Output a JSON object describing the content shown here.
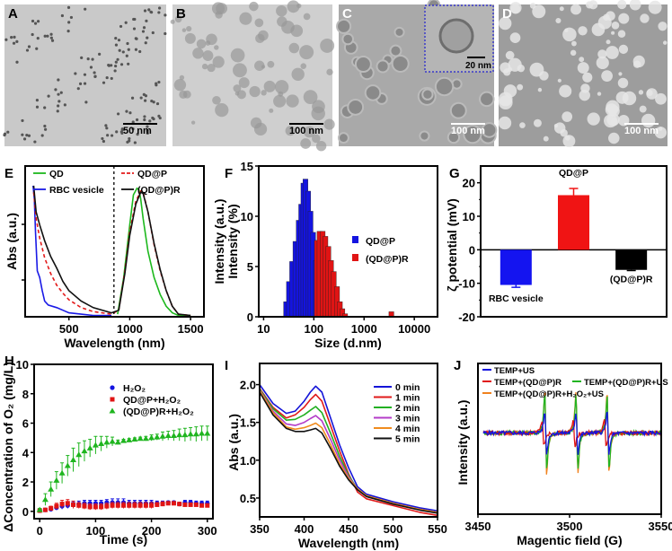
{
  "images": [
    {
      "label": "A",
      "scale_bar": "50 nm",
      "tone": "#c9c9c9"
    },
    {
      "label": "B",
      "scale_bar": "100 nm",
      "tone": "#cfcfcf"
    },
    {
      "label": "C",
      "scale_bar": "100 nm",
      "inset_scale_bar": "20 nm",
      "tone": "#a9a9a9"
    },
    {
      "label": "D",
      "scale_bar": "100 nm",
      "tone": "#9d9d9d"
    }
  ],
  "chart_data": [
    {
      "panel": "E",
      "type": "line",
      "xlabel": "Wavelength (nm)",
      "ylabel_left": "Abs (a.u.)",
      "ylabel_right": "Intensity (a.u.)",
      "xlim": [
        140,
        1610
      ],
      "xticks": [
        500,
        1000,
        1500
      ],
      "divider_x": 870,
      "grid": false,
      "legend": "top",
      "series": [
        {
          "name": "QD",
          "color": "#1db81d",
          "dash": false,
          "x": [
            900,
            950,
            1000,
            1030,
            1060,
            1075,
            1090,
            1110,
            1150,
            1200,
            1250,
            1300,
            1350,
            1400,
            1500
          ],
          "y": [
            0.02,
            0.3,
            0.7,
            0.93,
            0.98,
            0.97,
            0.9,
            0.75,
            0.5,
            0.3,
            0.17,
            0.08,
            0.03,
            0.01,
            0.01
          ]
        },
        {
          "name": "RBC vesicle",
          "color": "#1a1ae6",
          "dash": false,
          "x": [
            205,
            215,
            225,
            240,
            260,
            280,
            300,
            330,
            400,
            450,
            500,
            600,
            700,
            850
          ],
          "y": [
            1.0,
            0.9,
            0.65,
            0.35,
            0.3,
            0.2,
            0.12,
            0.09,
            0.07,
            0.05,
            0.03,
            0.02,
            0.01,
            0.01
          ]
        },
        {
          "name": "QD@P",
          "color": "#e31a1a",
          "dash": true,
          "x": [
            210,
            230,
            260,
            300,
            350,
            400,
            450,
            500,
            600,
            700,
            850,
            910,
            960,
            1000,
            1050,
            1090,
            1110,
            1150,
            1200,
            1250,
            1300,
            1350,
            1400,
            1500
          ],
          "y": [
            0.95,
            0.75,
            0.6,
            0.45,
            0.33,
            0.24,
            0.18,
            0.13,
            0.07,
            0.04,
            0.02,
            0.05,
            0.35,
            0.65,
            0.88,
            0.96,
            0.95,
            0.8,
            0.55,
            0.35,
            0.2,
            0.08,
            0.02,
            0.01
          ]
        },
        {
          "name": "(QD@P)R",
          "color": "#111111",
          "dash": false,
          "x": [
            210,
            230,
            260,
            300,
            350,
            400,
            450,
            500,
            600,
            700,
            850,
            910,
            960,
            1000,
            1050,
            1090,
            1110,
            1150,
            1200,
            1250,
            1300,
            1350,
            1400,
            1500
          ],
          "y": [
            1.0,
            0.8,
            0.7,
            0.58,
            0.46,
            0.37,
            0.27,
            0.2,
            0.12,
            0.07,
            0.03,
            0.05,
            0.33,
            0.62,
            0.86,
            0.95,
            0.94,
            0.8,
            0.56,
            0.36,
            0.2,
            0.08,
            0.02,
            0.01
          ]
        }
      ]
    },
    {
      "panel": "F",
      "type": "bar",
      "xlabel": "Size (d.nm)",
      "ylabel": "Intensity (%)",
      "xscale": "log",
      "xlim": [
        8,
        29000
      ],
      "ylim": [
        0,
        15
      ],
      "xticks": [
        10,
        100,
        1000,
        10000
      ],
      "yticks": [
        0,
        5,
        10,
        15
      ],
      "legend": "right",
      "series": [
        {
          "name": "QD@P",
          "color": "#1414e0",
          "x": [
            28,
            32,
            37,
            43,
            50,
            56,
            62,
            68,
            77,
            86,
            97,
            110,
            125,
            140
          ],
          "y": [
            1.5,
            3.5,
            5.5,
            7.5,
            9.6,
            11.2,
            13.3,
            13.7,
            12.5,
            10.5,
            8.4,
            5.6,
            3.0,
            1.2
          ]
        },
        {
          "name": "(QD@P)R",
          "color": "#e01414",
          "x": [
            115,
            130,
            150,
            170,
            195,
            220,
            250,
            290,
            330,
            370,
            420,
            3500
          ],
          "y": [
            7.6,
            8.5,
            8.5,
            8.0,
            7.0,
            5.6,
            4.5,
            3.0,
            1.5,
            0.8,
            0.3,
            0.5
          ]
        }
      ]
    },
    {
      "panel": "G",
      "type": "bar",
      "ylabel": "ζ potential (mV)",
      "ylim": [
        -20,
        25
      ],
      "yticks": [
        -20,
        -10,
        0,
        10,
        20
      ],
      "categories": [
        "RBC vesicle",
        "QD@P",
        "(QD@P)R"
      ],
      "values": [
        -10.5,
        16.3,
        -6.0
      ],
      "errors": [
        0.7,
        2.0,
        0.2
      ],
      "colors": [
        "#1414f0",
        "#f01414",
        "#000000"
      ]
    },
    {
      "panel": "H",
      "type": "scatter",
      "xlabel": "Time (s)",
      "ylabel": "ΔConcentration of O₂ (mg/L)",
      "xlim": [
        -10,
        310
      ],
      "ylim": [
        -0.5,
        10
      ],
      "xticks": [
        0,
        100,
        200,
        300
      ],
      "yticks": [
        0,
        2,
        4,
        6,
        8,
        10
      ],
      "legend": "top-right",
      "series": [
        {
          "name": "H₂O₂",
          "color": "#1414e0",
          "marker": "circle",
          "x": [
            0,
            10,
            20,
            30,
            40,
            50,
            60,
            70,
            80,
            90,
            100,
            110,
            120,
            130,
            140,
            150,
            160,
            170,
            180,
            190,
            200,
            210,
            220,
            230,
            240,
            250,
            260,
            270,
            280,
            290,
            300
          ],
          "y": [
            0.05,
            0.1,
            0.15,
            0.25,
            0.35,
            0.4,
            0.45,
            0.5,
            0.55,
            0.55,
            0.55,
            0.55,
            0.6,
            0.6,
            0.6,
            0.6,
            0.55,
            0.55,
            0.55,
            0.55,
            0.55,
            0.55,
            0.55,
            0.6,
            0.6,
            0.5,
            0.6,
            0.6,
            0.55,
            0.55,
            0.55
          ],
          "err": [
            0.1,
            0.1,
            0.1,
            0.15,
            0.2,
            0.2,
            0.2,
            0.2,
            0.2,
            0.2,
            0.2,
            0.2,
            0.2,
            0.25,
            0.25,
            0.25,
            0.2,
            0.2,
            0.2,
            0.2,
            0.2,
            0.15,
            0.15,
            0.1,
            0.1,
            0.1,
            0.15,
            0.15,
            0.15,
            0.15,
            0.15
          ]
        },
        {
          "name": "QD@P+H₂O₂",
          "color": "#e01414",
          "marker": "square",
          "x": [
            0,
            10,
            20,
            30,
            40,
            50,
            60,
            70,
            80,
            90,
            100,
            110,
            120,
            130,
            140,
            150,
            160,
            170,
            180,
            190,
            200,
            210,
            220,
            230,
            240,
            250,
            260,
            270,
            280,
            290,
            300
          ],
          "y": [
            0.05,
            0.1,
            0.2,
            0.35,
            0.5,
            0.55,
            0.45,
            0.4,
            0.35,
            0.3,
            0.3,
            0.3,
            0.35,
            0.4,
            0.4,
            0.4,
            0.4,
            0.4,
            0.4,
            0.4,
            0.4,
            0.45,
            0.5,
            0.55,
            0.55,
            0.5,
            0.45,
            0.45,
            0.45,
            0.4,
            0.4
          ],
          "err": [
            0.1,
            0.1,
            0.15,
            0.2,
            0.25,
            0.25,
            0.25,
            0.2,
            0.2,
            0.2,
            0.2,
            0.2,
            0.2,
            0.2,
            0.2,
            0.2,
            0.2,
            0.2,
            0.2,
            0.2,
            0.2,
            0.15,
            0.15,
            0.1,
            0.1,
            0.1,
            0.1,
            0.1,
            0.1,
            0.1,
            0.1
          ]
        },
        {
          "name": "(QD@P)R+H₂O₂",
          "color": "#1fb51f",
          "marker": "triangle",
          "x": [
            0,
            10,
            20,
            30,
            40,
            50,
            60,
            70,
            80,
            90,
            100,
            110,
            120,
            130,
            140,
            150,
            160,
            170,
            180,
            190,
            200,
            210,
            220,
            230,
            240,
            250,
            260,
            270,
            280,
            290,
            300
          ],
          "y": [
            0.1,
            0.8,
            1.5,
            2.1,
            2.6,
            3.1,
            3.5,
            3.85,
            4.1,
            4.3,
            4.5,
            4.6,
            4.7,
            4.75,
            4.7,
            4.8,
            4.85,
            4.9,
            4.95,
            4.95,
            5.0,
            5.05,
            5.1,
            5.15,
            5.15,
            5.2,
            5.2,
            5.25,
            5.25,
            5.3,
            5.3
          ],
          "err": [
            0.1,
            0.4,
            0.5,
            0.6,
            0.7,
            0.7,
            0.8,
            0.8,
            0.7,
            0.6,
            0.6,
            0.5,
            0.4,
            0.3,
            0.15,
            0.1,
            0.1,
            0.1,
            0.1,
            0.15,
            0.2,
            0.2,
            0.3,
            0.3,
            0.35,
            0.4,
            0.45,
            0.45,
            0.5,
            0.5,
            0.5
          ]
        }
      ]
    },
    {
      "panel": "I",
      "type": "line",
      "xlabel": "Wavelength (nm)",
      "ylabel": "Abs (a.u.)",
      "xlim": [
        350,
        550
      ],
      "ylim": [
        0.25,
        2.28
      ],
      "xticks": [
        350,
        400,
        450,
        500,
        550
      ],
      "yticks": [
        0.5,
        1.0,
        1.5,
        2.0
      ],
      "legend": "top-right",
      "x": [
        350,
        365,
        380,
        390,
        400,
        407,
        413,
        420,
        430,
        440,
        450,
        460,
        470,
        500,
        530,
        550
      ],
      "series": [
        {
          "name": "0 min",
          "color": "#1414d8",
          "y": [
            2.0,
            1.75,
            1.62,
            1.65,
            1.78,
            1.9,
            1.98,
            1.9,
            1.55,
            1.2,
            0.9,
            0.65,
            0.55,
            0.45,
            0.37,
            0.33
          ]
        },
        {
          "name": "1 min",
          "color": "#e01a1a",
          "y": [
            1.95,
            1.7,
            1.56,
            1.6,
            1.7,
            1.8,
            1.87,
            1.78,
            1.45,
            1.12,
            0.82,
            0.58,
            0.49,
            0.4,
            0.31,
            0.27
          ]
        },
        {
          "name": "2 min",
          "color": "#22b022",
          "y": [
            1.94,
            1.68,
            1.53,
            1.54,
            1.6,
            1.66,
            1.71,
            1.63,
            1.35,
            1.05,
            0.8,
            0.62,
            0.53,
            0.43,
            0.35,
            0.31
          ]
        },
        {
          "name": "3 min",
          "color": "#b43cc8",
          "y": [
            1.93,
            1.65,
            1.48,
            1.46,
            1.5,
            1.55,
            1.59,
            1.52,
            1.27,
            1.0,
            0.78,
            0.62,
            0.53,
            0.43,
            0.35,
            0.31
          ]
        },
        {
          "name": "4 min",
          "color": "#f08c1e",
          "y": [
            1.92,
            1.63,
            1.44,
            1.41,
            1.43,
            1.46,
            1.49,
            1.43,
            1.2,
            0.95,
            0.76,
            0.62,
            0.53,
            0.43,
            0.35,
            0.31
          ]
        },
        {
          "name": "5 min",
          "color": "#111111",
          "y": [
            1.9,
            1.6,
            1.42,
            1.38,
            1.38,
            1.4,
            1.42,
            1.36,
            1.15,
            0.92,
            0.74,
            0.61,
            0.52,
            0.42,
            0.34,
            0.3
          ]
        }
      ]
    },
    {
      "panel": "J",
      "type": "line",
      "xlabel": "Magentic field (G)",
      "ylabel": "Intensity (a.u.)",
      "xlim": [
        3450,
        3550
      ],
      "xticks": [
        3450,
        3500,
        3550
      ],
      "legend": "top",
      "line_positions": [
        3487,
        3504,
        3521
      ],
      "series": [
        {
          "name": "TEMP+US",
          "color": "#1414e0",
          "amplitude": 0.55,
          "shift": 0
        },
        {
          "name": "TEMP+(QD@P)R",
          "color": "#e01414",
          "amplitude": 0.35,
          "shift": -1.5
        },
        {
          "name": "TEMP+(QD@P)R+US",
          "color": "#22b422",
          "amplitude": 1.0,
          "shift": 0
        },
        {
          "name": "TEMP+(QD@P)R+H₂O₂+US",
          "color": "#f0821e",
          "amplitude": 1.1,
          "shift": 0
        }
      ]
    }
  ]
}
